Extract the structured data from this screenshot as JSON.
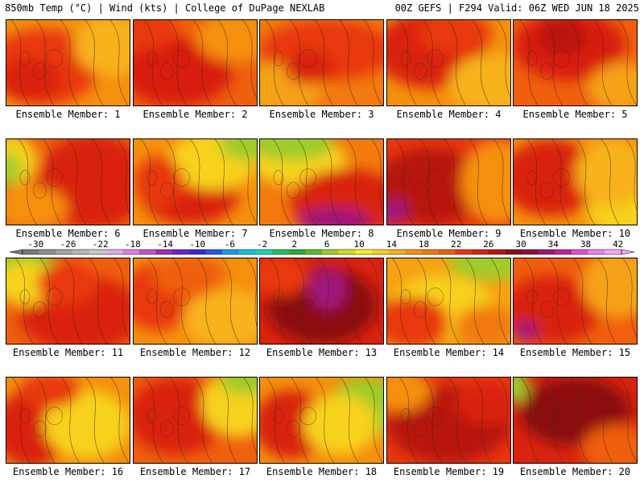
{
  "header": {
    "left": "850mb Temp (°C) | Wind (kts) | College of DuPage NEXLAB",
    "right": "00Z GEFS | F294 Valid: 06Z WED JUN 18 2025"
  },
  "member_label_prefix": "Ensemble Member: ",
  "members": [
    {
      "id": "1",
      "base": "#f5900c",
      "blobs": [
        [
          "#e8380f",
          0.3,
          0.55,
          0.45,
          0.45
        ],
        [
          "#d9230f",
          0.2,
          0.7,
          0.25,
          0.25
        ],
        [
          "#f7b21a",
          0.85,
          0.3,
          0.3,
          0.35
        ]
      ]
    },
    {
      "id": "2",
      "base": "#ef5f0e",
      "blobs": [
        [
          "#d81f10",
          0.35,
          0.6,
          0.45,
          0.4
        ],
        [
          "#f5900c",
          0.85,
          0.2,
          0.35,
          0.3
        ],
        [
          "#e8380f",
          0.1,
          0.1,
          0.25,
          0.25
        ]
      ]
    },
    {
      "id": "3",
      "base": "#f27a0e",
      "blobs": [
        [
          "#e8380f",
          0.55,
          0.35,
          0.55,
          0.35
        ],
        [
          "#f5a213",
          0.15,
          0.8,
          0.35,
          0.3
        ],
        [
          "#d9230f",
          0.4,
          0.55,
          0.2,
          0.2
        ]
      ]
    },
    {
      "id": "4",
      "base": "#f5900c",
      "blobs": [
        [
          "#d9230f",
          0.35,
          0.35,
          0.45,
          0.45
        ],
        [
          "#f7b21a",
          0.85,
          0.75,
          0.35,
          0.35
        ],
        [
          "#e8380f",
          0.55,
          0.15,
          0.3,
          0.25
        ]
      ]
    },
    {
      "id": "5",
      "base": "#ef5f0e",
      "blobs": [
        [
          "#d81f10",
          0.45,
          0.3,
          0.45,
          0.4
        ],
        [
          "#f5a213",
          0.9,
          0.8,
          0.3,
          0.3
        ],
        [
          "#b8160f",
          0.4,
          0.2,
          0.2,
          0.2
        ]
      ]
    },
    {
      "id": "6",
      "base": "#ef5f0e",
      "blobs": [
        [
          "#d9230f",
          0.7,
          0.5,
          0.45,
          0.55
        ],
        [
          "#f7d21c",
          0.05,
          0.25,
          0.2,
          0.3
        ],
        [
          "#9fcc2a",
          0.02,
          0.35,
          0.1,
          0.2
        ],
        [
          "#f5900c",
          0.2,
          0.8,
          0.3,
          0.25
        ]
      ]
    },
    {
      "id": "7",
      "base": "#f5900c",
      "blobs": [
        [
          "#d9230f",
          0.45,
          0.65,
          0.4,
          0.35
        ],
        [
          "#f7d21c",
          0.65,
          0.25,
          0.35,
          0.35
        ],
        [
          "#9fcc2a",
          0.95,
          0.05,
          0.25,
          0.2
        ],
        [
          "#e8380f",
          0.2,
          0.5,
          0.2,
          0.3
        ]
      ]
    },
    {
      "id": "8",
      "base": "#f27a0e",
      "blobs": [
        [
          "#f7d21c",
          0.3,
          0.25,
          0.4,
          0.3
        ],
        [
          "#9fcc2a",
          0.25,
          0.05,
          0.35,
          0.2
        ],
        [
          "#d9230f",
          0.7,
          0.75,
          0.45,
          0.4
        ],
        [
          "#a0157a",
          0.6,
          0.95,
          0.3,
          0.15
        ]
      ]
    },
    {
      "id": "9",
      "base": "#e8380f",
      "blobs": [
        [
          "#b8160f",
          0.35,
          0.55,
          0.45,
          0.45
        ],
        [
          "#f5900c",
          0.9,
          0.5,
          0.3,
          0.5
        ],
        [
          "#a0157a",
          0.05,
          0.85,
          0.12,
          0.15
        ]
      ]
    },
    {
      "id": "10",
      "base": "#f5900c",
      "blobs": [
        [
          "#d9230f",
          0.3,
          0.45,
          0.4,
          0.45
        ],
        [
          "#f7d21c",
          0.9,
          0.85,
          0.3,
          0.3
        ],
        [
          "#f7b21a",
          0.8,
          0.4,
          0.3,
          0.4
        ]
      ]
    },
    {
      "id": "11",
      "base": "#ef5f0e",
      "blobs": [
        [
          "#d9230f",
          0.6,
          0.65,
          0.5,
          0.45
        ],
        [
          "#9fcc2a",
          0.1,
          0.1,
          0.3,
          0.25
        ],
        [
          "#f7d21c",
          0.15,
          0.3,
          0.25,
          0.25
        ],
        [
          "#e8380f",
          0.5,
          0.3,
          0.25,
          0.25
        ]
      ]
    },
    {
      "id": "12",
      "base": "#f5900c",
      "blobs": [
        [
          "#e8380f",
          0.2,
          0.45,
          0.3,
          0.4
        ],
        [
          "#f7b21a",
          0.75,
          0.7,
          0.35,
          0.35
        ],
        [
          "#ef5f0e",
          0.45,
          0.2,
          0.3,
          0.25
        ]
      ]
    },
    {
      "id": "13",
      "base": "#d9230f",
      "blobs": [
        [
          "#8c1010",
          0.5,
          0.55,
          0.45,
          0.45
        ],
        [
          "#a0157a",
          0.55,
          0.35,
          0.15,
          0.25
        ],
        [
          "#e8380f",
          0.15,
          0.2,
          0.25,
          0.25
        ]
      ]
    },
    {
      "id": "14",
      "base": "#f5a213",
      "blobs": [
        [
          "#9fcc2a",
          0.85,
          0.05,
          0.35,
          0.2
        ],
        [
          "#f7d21c",
          0.45,
          0.55,
          0.4,
          0.35
        ],
        [
          "#e8380f",
          0.2,
          0.75,
          0.3,
          0.3
        ],
        [
          "#f27a0e",
          0.8,
          0.8,
          0.25,
          0.25
        ]
      ]
    },
    {
      "id": "15",
      "base": "#ef5f0e",
      "blobs": [
        [
          "#d9230f",
          0.3,
          0.6,
          0.4,
          0.4
        ],
        [
          "#f5a213",
          0.85,
          0.3,
          0.3,
          0.4
        ],
        [
          "#a0157a",
          0.1,
          0.85,
          0.1,
          0.12
        ]
      ]
    },
    {
      "id": "16",
      "base": "#f5900c",
      "blobs": [
        [
          "#d9230f",
          0.2,
          0.6,
          0.3,
          0.45
        ],
        [
          "#f7d21c",
          0.65,
          0.55,
          0.35,
          0.4
        ],
        [
          "#e8380f",
          0.35,
          0.15,
          0.25,
          0.2
        ]
      ]
    },
    {
      "id": "17",
      "base": "#ef5f0e",
      "blobs": [
        [
          "#d9230f",
          0.35,
          0.45,
          0.4,
          0.45
        ],
        [
          "#f7d21c",
          0.85,
          0.3,
          0.3,
          0.4
        ],
        [
          "#9fcc2a",
          0.9,
          0.05,
          0.2,
          0.15
        ]
      ]
    },
    {
      "id": "18",
      "base": "#f5900c",
      "blobs": [
        [
          "#d9230f",
          0.25,
          0.55,
          0.3,
          0.4
        ],
        [
          "#9fcc2a",
          0.85,
          0.35,
          0.3,
          0.35
        ],
        [
          "#f7d21c",
          0.65,
          0.55,
          0.3,
          0.35
        ]
      ]
    },
    {
      "id": "19",
      "base": "#e8380f",
      "blobs": [
        [
          "#b8160f",
          0.5,
          0.55,
          0.5,
          0.45
        ],
        [
          "#f5900c",
          0.1,
          0.15,
          0.25,
          0.25
        ],
        [
          "#d9230f",
          0.8,
          0.3,
          0.25,
          0.25
        ]
      ]
    },
    {
      "id": "20",
      "base": "#d9230f",
      "blobs": [
        [
          "#8c1010",
          0.5,
          0.4,
          0.45,
          0.4
        ],
        [
          "#9fcc2a",
          0.02,
          0.1,
          0.1,
          0.2
        ],
        [
          "#ef5f0e",
          0.85,
          0.85,
          0.3,
          0.3
        ]
      ]
    }
  ],
  "colorbar": {
    "labels": [
      "-30",
      "-26",
      "-22",
      "-18",
      "-14",
      "-10",
      "-6",
      "-2",
      "2",
      "6",
      "10",
      "14",
      "18",
      "22",
      "26",
      "30",
      "34",
      "38",
      "42"
    ],
    "colors": [
      "#7a7a7a",
      "#8e8e8e",
      "#a3a3a3",
      "#b8b8b8",
      "#c8c8c8",
      "#d8b2e8",
      "#e07fe0",
      "#c552c5",
      "#9c2fb8",
      "#6a22c8",
      "#3a28d0",
      "#2a55e6",
      "#1a9ae8",
      "#19c0d8",
      "#1fd4b4",
      "#22c06a",
      "#2fa83a",
      "#5cbb2e",
      "#9fcc2a",
      "#cfe020",
      "#f7f21c",
      "#f7d21c",
      "#f5b21a",
      "#f5900c",
      "#f27a0e",
      "#ef5f0e",
      "#e8380f",
      "#d9230f",
      "#b8160f",
      "#8c1010",
      "#8a1040",
      "#a0157a",
      "#c81d9c",
      "#e050d0",
      "#f080f0",
      "#f7a8f7"
    ]
  }
}
